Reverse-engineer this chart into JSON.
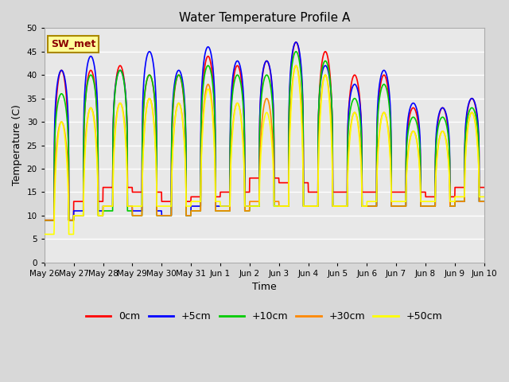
{
  "title": "Water Temperature Profile A",
  "xlabel": "Time",
  "ylabel": "Temperature (C)",
  "ylim": [
    0,
    50
  ],
  "annotation": "SW_met",
  "bg_color": "#e8e8e8",
  "grid_color": "#ffffff",
  "series_colors": [
    "#ff0000",
    "#0000ff",
    "#00cc00",
    "#ff8800",
    "#ffff00"
  ],
  "series_labels": [
    "0cm",
    "+5cm",
    "+10cm",
    "+30cm",
    "+50cm"
  ],
  "date_labels": [
    "May 26",
    "May 27",
    "May 28",
    "May 29",
    "May 30",
    "May 31",
    "Jun 1",
    "Jun 2",
    "Jun 3",
    "Jun 4",
    "Jun 5",
    "Jun 6",
    "Jun 7",
    "Jun 8",
    "Jun 9",
    "Jun 10"
  ],
  "n_days": 15,
  "points_per_day": 144,
  "day_peaks": {
    "0": [
      41,
      41,
      42,
      40,
      40,
      44,
      42,
      43,
      47,
      45,
      40,
      40,
      33,
      33,
      35
    ],
    "1": [
      41,
      44,
      41,
      45,
      41,
      46,
      43,
      43,
      47,
      42,
      38,
      41,
      34,
      33,
      35
    ],
    "2": [
      36,
      40,
      41,
      40,
      40,
      42,
      40,
      40,
      45,
      43,
      35,
      38,
      31,
      31,
      33
    ],
    "3": [
      30,
      33,
      34,
      35,
      34,
      38,
      34,
      35,
      42,
      40,
      32,
      32,
      28,
      28,
      32
    ],
    "4": [
      30,
      33,
      34,
      35,
      34,
      37,
      34,
      32,
      42,
      40,
      32,
      32,
      28,
      28,
      32
    ]
  },
  "day_troughs": {
    "0": [
      9,
      13,
      16,
      15,
      13,
      14,
      15,
      18,
      17,
      15,
      15,
      15,
      15,
      14,
      16
    ],
    "1": [
      9,
      11,
      12,
      11,
      10,
      12,
      12,
      12,
      12,
      12,
      12,
      12,
      12,
      12,
      13
    ],
    "2": [
      9,
      10,
      11,
      10,
      10,
      11,
      11,
      12,
      12,
      12,
      12,
      12,
      12,
      12,
      13
    ],
    "3": [
      9,
      10,
      12,
      10,
      10,
      11,
      11,
      13,
      12,
      12,
      12,
      12,
      12,
      12,
      13
    ],
    "4": [
      6,
      10,
      12,
      12,
      12,
      13,
      12,
      12,
      12,
      12,
      12,
      13,
      13,
      13,
      14
    ]
  },
  "peak_sharpness": [
    3.5,
    5.0,
    4.5,
    2.5,
    2.0
  ],
  "peak_hour": 0.583
}
